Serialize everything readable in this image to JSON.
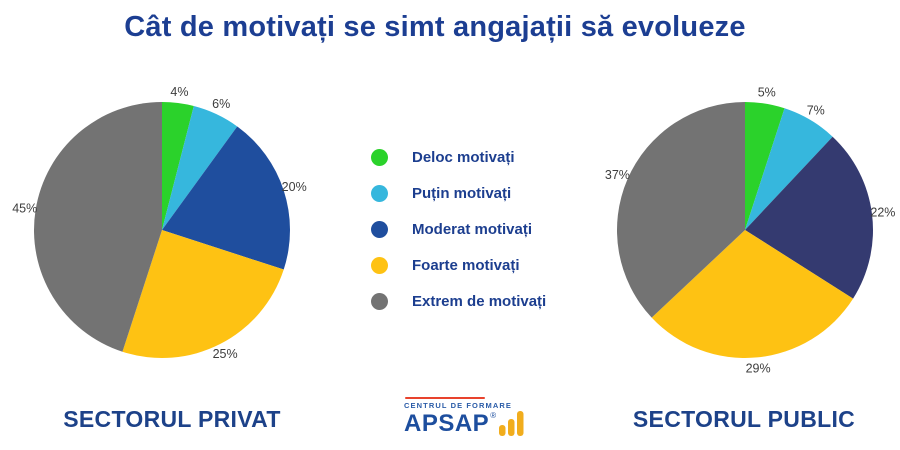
{
  "title": "Cât de motivați se simt angajații să evolueze",
  "legend": {
    "items": [
      {
        "label": "Deloc motivați",
        "color": "#2bd22b"
      },
      {
        "label": "Puțin motivați",
        "color": "#36b7dd"
      },
      {
        "label": "Moderat motivați",
        "color": "#1f4e9e"
      },
      {
        "label": "Foarte motivați",
        "color": "#fec213"
      },
      {
        "label": "Extrem de motivați",
        "color": "#737373"
      }
    ]
  },
  "chart_data": [
    {
      "type": "pie",
      "title": "SECTORUL PRIVAT",
      "categories": [
        "Deloc motivați",
        "Puțin motivați",
        "Moderat motivați",
        "Foarte motivați",
        "Extrem de motivați"
      ],
      "values": [
        4,
        6,
        20,
        25,
        45
      ],
      "unit": "%",
      "colors": [
        "#2bd22b",
        "#36b7dd",
        "#1f4e9e",
        "#fec213",
        "#737373"
      ],
      "start_angle_deg": 0,
      "direction": "clockwise",
      "label_position": "outside"
    },
    {
      "type": "pie",
      "title": "SECTORUL PUBLIC",
      "categories": [
        "Deloc motivați",
        "Puțin motivați",
        "Moderat motivați",
        "Foarte motivați",
        "Extrem de motivați"
      ],
      "values": [
        5,
        7,
        22,
        29,
        37
      ],
      "unit": "%",
      "colors": [
        "#2bd22b",
        "#36b7dd",
        "#343a70",
        "#fec213",
        "#737373"
      ],
      "start_angle_deg": 0,
      "direction": "clockwise",
      "label_position": "outside"
    }
  ],
  "logo": {
    "tagline": "CENTRUL DE FORMARE",
    "name": "APSAP",
    "registered_mark": "®",
    "bars_icon_color": "#f1ad1d",
    "accent_line_color": "#e8432d"
  },
  "colors": {
    "title_text": "#1c3e92",
    "section_label_text": "#1d4289",
    "pie_value_text": "#3d3d3d",
    "background": "#ffffff"
  }
}
